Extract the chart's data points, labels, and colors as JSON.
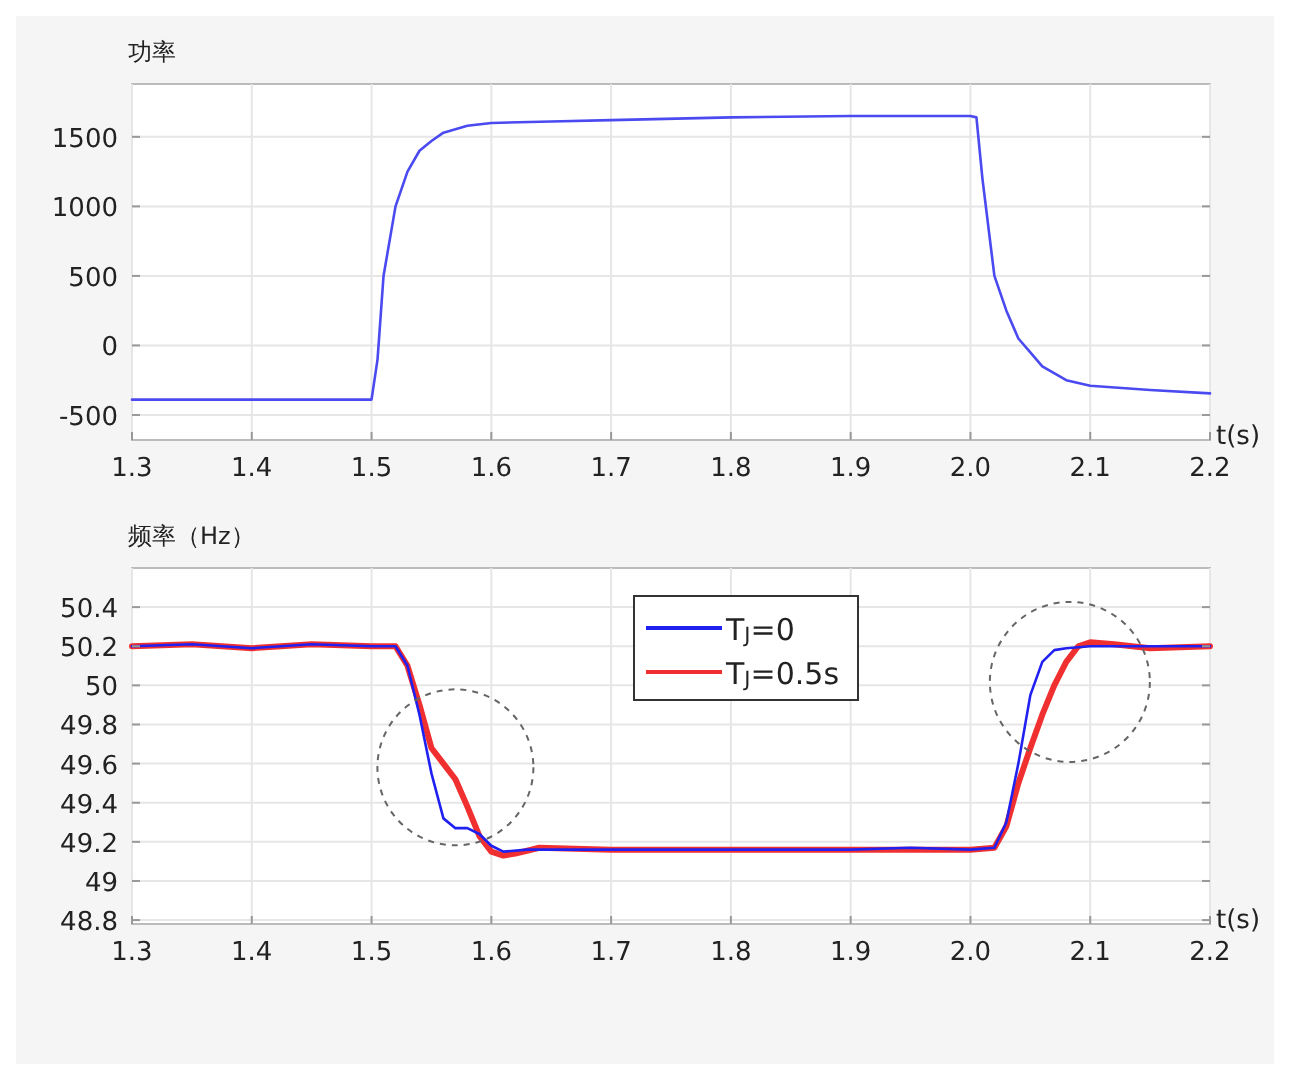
{
  "chart_data": [
    {
      "type": "line",
      "ylabel": "功率",
      "xlabel": "t(s)",
      "xlim": [
        1.3,
        2.2
      ],
      "ylim": [
        -680,
        1880
      ],
      "grid": true,
      "xticks": [
        1.3,
        1.4,
        1.5,
        1.6,
        1.7,
        1.8,
        1.9,
        {
          "value": 2,
          "label": "2.0"
        },
        2.1,
        2.2
      ],
      "yticks": [
        -500,
        0,
        500,
        1000,
        1500
      ],
      "series": [
        {
          "color": "#4a4af0",
          "x": [
            1.3,
            1.4,
            1.5,
            1.505,
            1.51,
            1.52,
            1.53,
            1.54,
            1.55,
            1.56,
            1.58,
            1.6,
            1.65,
            1.7,
            1.8,
            1.9,
            2.0,
            2.005,
            2.01,
            2.02,
            2.03,
            2.04,
            2.05,
            2.06,
            2.08,
            2.1,
            2.15,
            2.2
          ],
          "values": [
            -390,
            -390,
            -390,
            -100,
            500,
            1000,
            1250,
            1400,
            1470,
            1530,
            1580,
            1600,
            1610,
            1620,
            1640,
            1650,
            1650,
            1640,
            1200,
            500,
            250,
            50,
            -50,
            -150,
            -250,
            -290,
            -320,
            -345
          ]
        }
      ]
    },
    {
      "type": "line",
      "ylabel": "频率（Hz）",
      "xlabel": "t(s)",
      "xlim": [
        1.3,
        2.2
      ],
      "ylim": [
        48.78,
        50.6
      ],
      "grid": true,
      "legend": "top",
      "xticks": [
        1.3,
        1.4,
        1.5,
        1.6,
        1.7,
        1.8,
        1.9,
        {
          "value": 2,
          "label": "2.0"
        },
        2.1,
        2.2
      ],
      "yticks": [
        48.8,
        49,
        49.2,
        49.4,
        49.6,
        49.8,
        50,
        50.2,
        50.4
      ],
      "series": [
        {
          "name": "T$_{J}$=0",
          "color": "#2020f0",
          "x": [
            1.3,
            1.35,
            1.4,
            1.45,
            1.5,
            1.52,
            1.53,
            1.54,
            1.55,
            1.56,
            1.57,
            1.58,
            1.59,
            1.6,
            1.61,
            1.63,
            1.7,
            1.8,
            1.9,
            1.95,
            2.0,
            2.02,
            2.03,
            2.04,
            2.05,
            2.06,
            2.07,
            2.08,
            2.1,
            2.2
          ],
          "values": [
            50.2,
            50.21,
            50.19,
            50.21,
            50.2,
            50.2,
            50.1,
            49.85,
            49.55,
            49.32,
            49.27,
            49.27,
            49.24,
            49.18,
            49.15,
            49.16,
            49.16,
            49.16,
            49.16,
            49.17,
            49.16,
            49.17,
            49.3,
            49.6,
            49.95,
            50.12,
            50.18,
            50.19,
            50.2,
            50.2
          ]
        },
        {
          "name": "T$_{J}$=0.5s",
          "color": "#f03030",
          "x": [
            1.3,
            1.35,
            1.4,
            1.45,
            1.5,
            1.52,
            1.53,
            1.54,
            1.55,
            1.56,
            1.57,
            1.58,
            1.59,
            1.6,
            1.61,
            1.62,
            1.64,
            1.7,
            1.8,
            1.9,
            2.0,
            2.02,
            2.03,
            2.04,
            2.05,
            2.06,
            2.07,
            2.08,
            2.09,
            2.1,
            2.12,
            2.15,
            2.2
          ],
          "values": [
            50.2,
            50.21,
            50.19,
            50.21,
            50.2,
            50.2,
            50.1,
            49.9,
            49.68,
            49.6,
            49.52,
            49.38,
            49.23,
            49.15,
            49.13,
            49.14,
            49.17,
            49.16,
            49.16,
            49.16,
            49.16,
            49.17,
            49.28,
            49.5,
            49.68,
            49.85,
            50.0,
            50.12,
            50.2,
            50.22,
            50.21,
            50.19,
            50.2
          ]
        }
      ]
    }
  ]
}
